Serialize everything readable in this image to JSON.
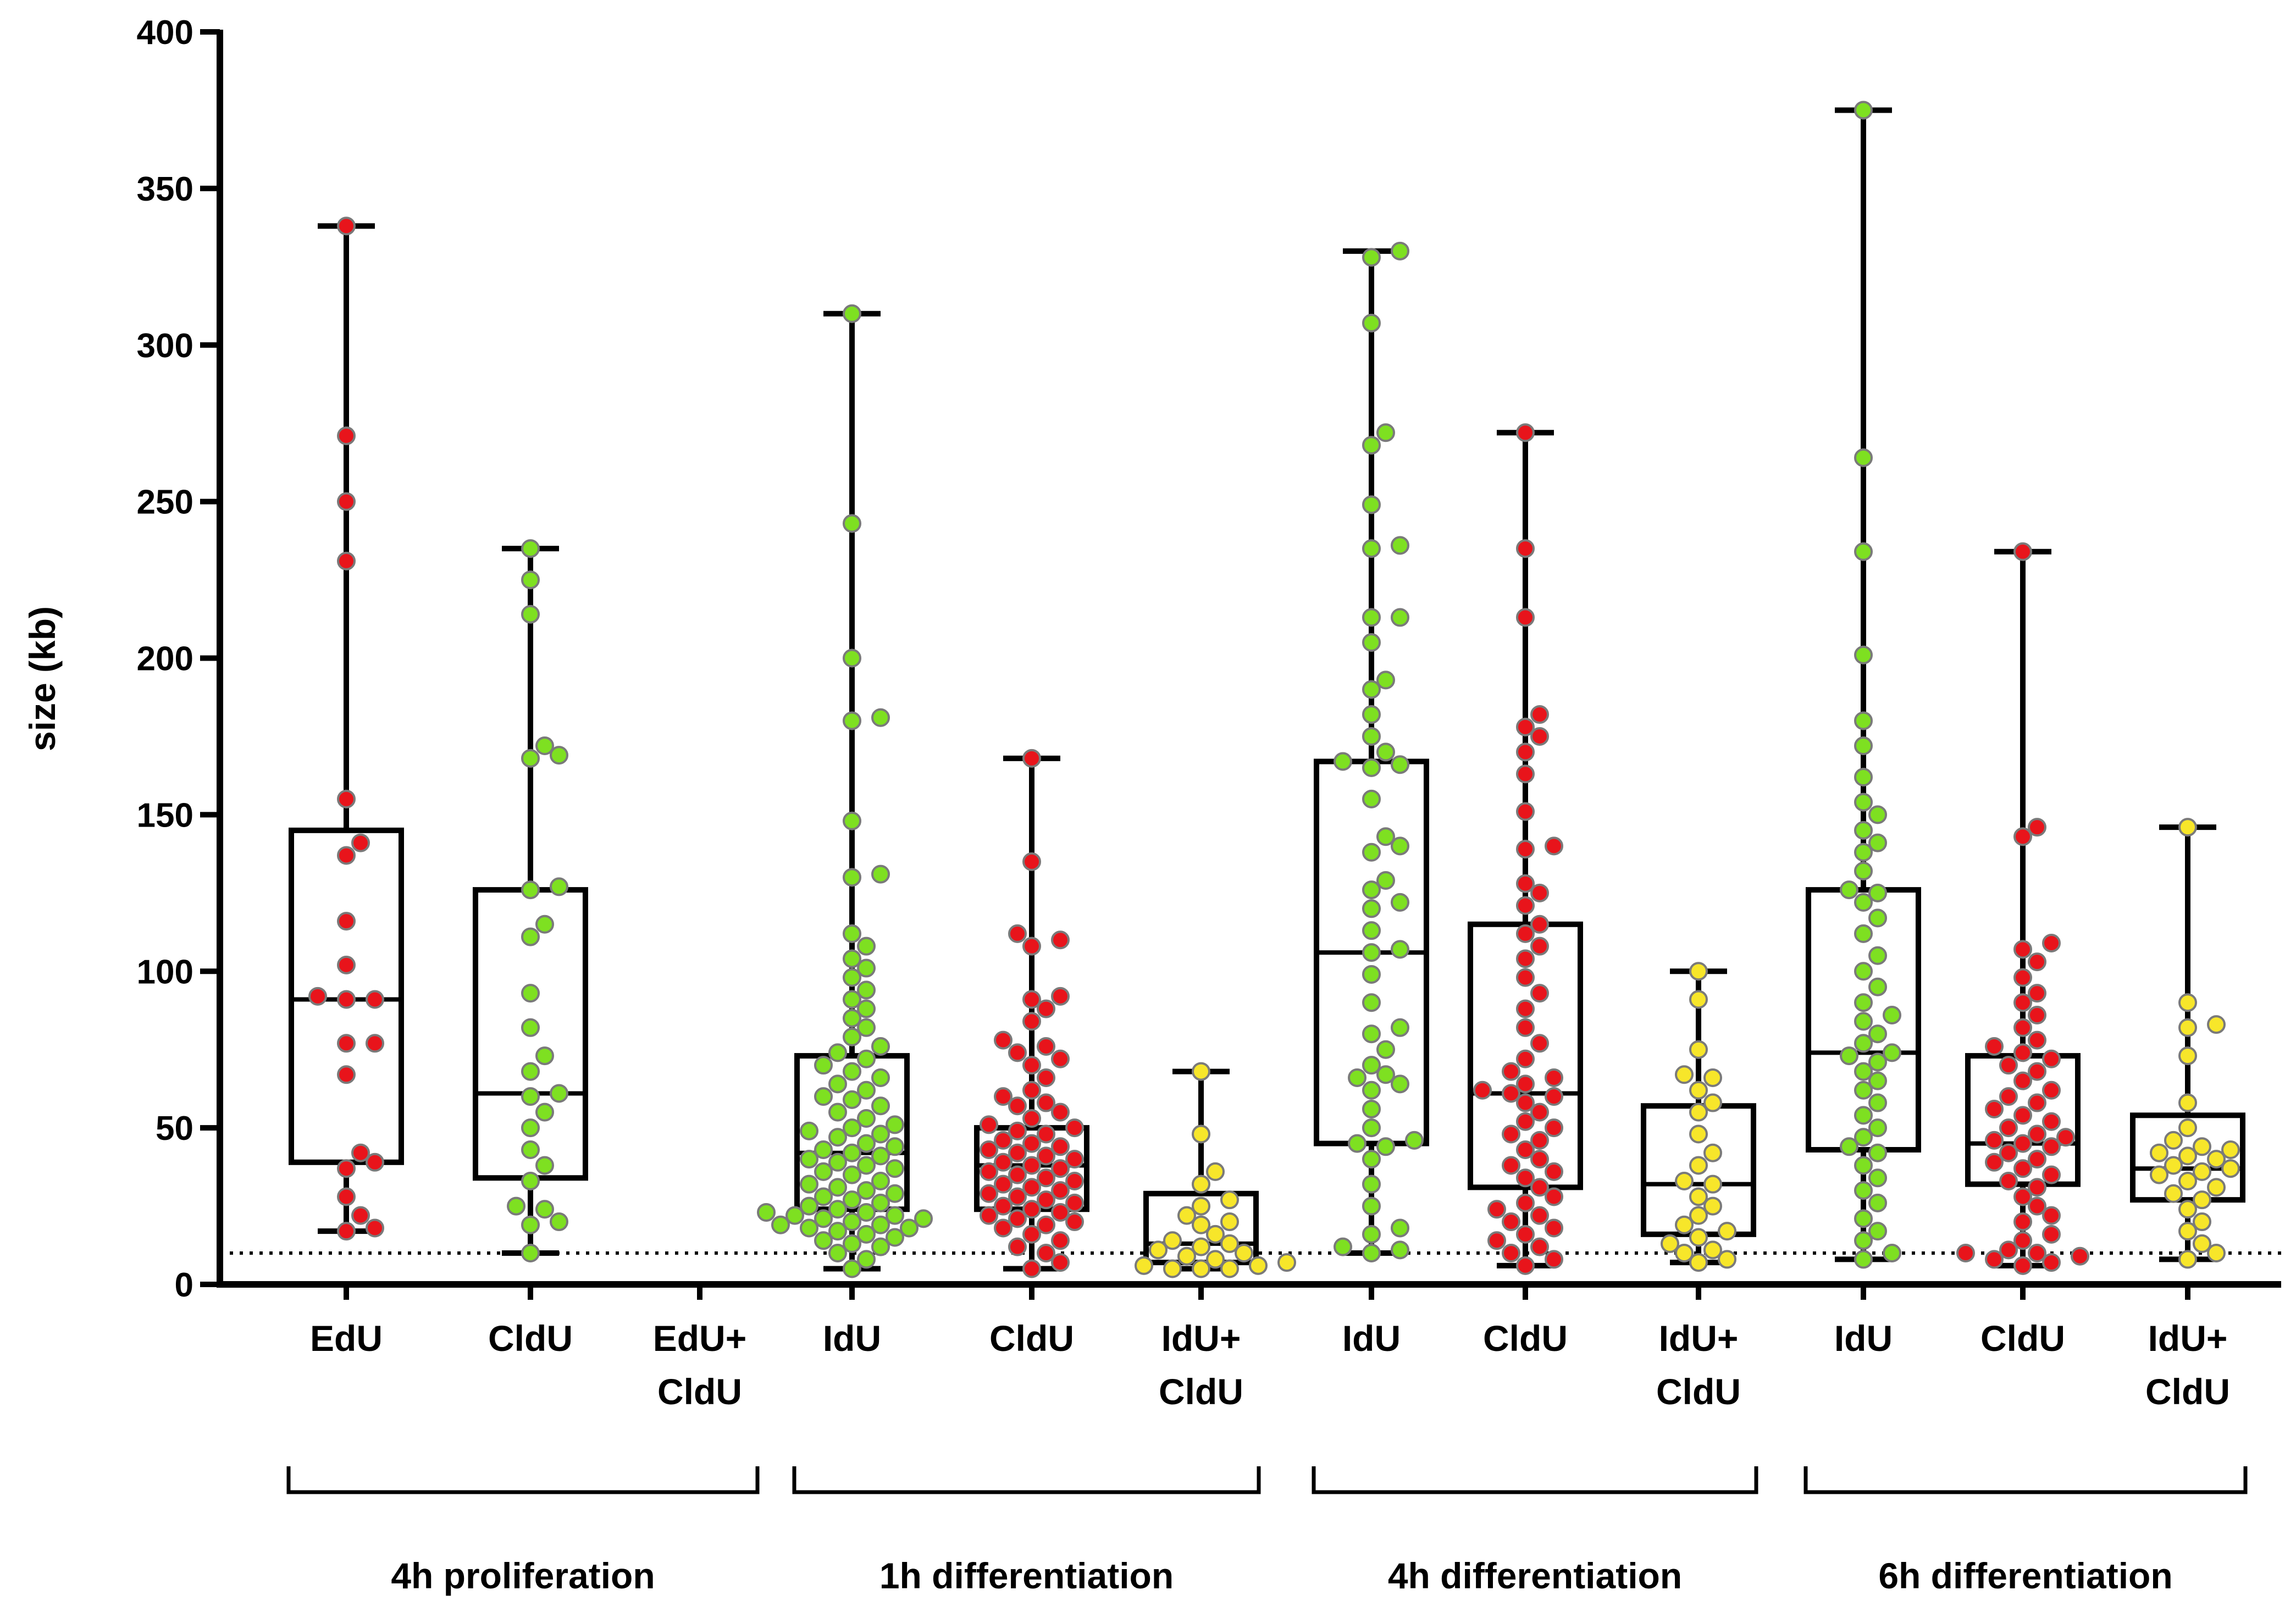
{
  "chart_data": {
    "type": "box",
    "title": "",
    "xlabel": "",
    "ylabel": "size (kb)",
    "ylim": [
      0,
      400
    ],
    "yticks": [
      0,
      50,
      100,
      150,
      200,
      250,
      300,
      350,
      400
    ],
    "reference_line": 10,
    "colors": {
      "red": "#e8141b",
      "green": "#7ee021",
      "yellow": "#f7e62a"
    },
    "groups": [
      {
        "label": "4h proliferation",
        "categories": [
          "EdU",
          "CldU",
          "EdU+\nCldU"
        ]
      },
      {
        "label": "1h differentiation",
        "categories": [
          "IdU",
          "CldU",
          "IdU+\nCldU"
        ]
      },
      {
        "label": "4h differentiation",
        "categories": [
          "IdU",
          "CldU",
          "IdU+\nCldU"
        ]
      },
      {
        "label": "6h differentiation",
        "categories": [
          "IdU",
          "CldU",
          "IdU+\nCldU"
        ]
      }
    ],
    "series": [
      {
        "name": "4h proliferation EdU",
        "color": "red",
        "min": 17,
        "q1": 39,
        "median": 91,
        "q3": 145,
        "max": 338,
        "points": [
          17,
          18,
          22,
          28,
          37,
          39,
          42,
          67,
          77,
          77,
          91,
          91,
          92,
          102,
          116,
          137,
          141,
          155,
          231,
          250,
          271,
          338
        ]
      },
      {
        "name": "4h proliferation CldU",
        "color": "green",
        "min": 10,
        "q1": 34,
        "median": 61,
        "q3": 126,
        "max": 235,
        "points": [
          10,
          19,
          20,
          24,
          25,
          33,
          38,
          43,
          50,
          55,
          60,
          61,
          68,
          73,
          82,
          93,
          111,
          115,
          126,
          127,
          168,
          169,
          172,
          214,
          225,
          235
        ]
      },
      {
        "name": "4h proliferation EdU+CldU",
        "color": "yellow",
        "empty": true,
        "points": []
      },
      {
        "name": "1h differentiation IdU",
        "color": "green",
        "min": 5,
        "q1": 24,
        "median": 42,
        "q3": 73,
        "max": 310,
        "points": [
          5,
          8,
          10,
          12,
          13,
          14,
          15,
          16,
          17,
          18,
          18,
          19,
          19,
          20,
          21,
          21,
          22,
          22,
          23,
          23,
          24,
          25,
          26,
          27,
          28,
          29,
          30,
          31,
          32,
          33,
          35,
          36,
          37,
          38,
          39,
          40,
          41,
          42,
          43,
          44,
          45,
          47,
          48,
          49,
          50,
          51,
          53,
          55,
          57,
          59,
          60,
          62,
          64,
          66,
          68,
          70,
          72,
          74,
          76,
          79,
          82,
          85,
          88,
          91,
          94,
          98,
          101,
          104,
          108,
          112,
          130,
          131,
          148,
          180,
          181,
          200,
          243,
          310
        ]
      },
      {
        "name": "1h differentiation CldU",
        "color": "red",
        "min": 5,
        "q1": 24,
        "median": 38,
        "q3": 50,
        "max": 168,
        "points": [
          5,
          7,
          10,
          12,
          14,
          16,
          18,
          19,
          20,
          21,
          22,
          23,
          24,
          25,
          26,
          27,
          28,
          29,
          30,
          31,
          32,
          33,
          34,
          35,
          36,
          37,
          38,
          39,
          40,
          41,
          42,
          43,
          44,
          45,
          46,
          48,
          49,
          50,
          51,
          53,
          55,
          57,
          58,
          60,
          62,
          66,
          70,
          72,
          74,
          76,
          78,
          84,
          88,
          91,
          92,
          108,
          110,
          112,
          135,
          168
        ]
      },
      {
        "name": "1h differentiation IdU+CldU",
        "color": "yellow",
        "min": 5,
        "q1": 7,
        "median": 13,
        "q3": 29,
        "max": 68,
        "points": [
          5,
          5,
          5,
          6,
          6,
          7,
          8,
          9,
          10,
          11,
          12,
          13,
          14,
          16,
          19,
          20,
          22,
          25,
          27,
          32,
          36,
          48,
          68
        ]
      },
      {
        "name": "4h differentiation IdU",
        "color": "green",
        "min": 10,
        "q1": 45,
        "median": 106,
        "q3": 167,
        "max": 330,
        "points": [
          10,
          11,
          12,
          16,
          18,
          25,
          32,
          40,
          44,
          45,
          46,
          50,
          56,
          62,
          64,
          66,
          67,
          70,
          75,
          80,
          82,
          90,
          99,
          106,
          107,
          113,
          120,
          122,
          126,
          129,
          138,
          140,
          143,
          155,
          165,
          166,
          167,
          170,
          175,
          182,
          190,
          193,
          205,
          213,
          213,
          235,
          236,
          249,
          268,
          272,
          307,
          328,
          330
        ]
      },
      {
        "name": "4h differentiation CldU",
        "color": "red",
        "min": 6,
        "q1": 31,
        "median": 61,
        "q3": 115,
        "max": 272,
        "points": [
          6,
          8,
          10,
          12,
          14,
          16,
          18,
          20,
          22,
          24,
          26,
          28,
          31,
          34,
          36,
          38,
          40,
          43,
          46,
          48,
          50,
          52,
          55,
          58,
          60,
          61,
          62,
          64,
          66,
          68,
          72,
          77,
          82,
          88,
          93,
          98,
          104,
          108,
          112,
          115,
          121,
          125,
          128,
          139,
          140,
          151,
          163,
          170,
          175,
          178,
          182,
          213,
          235,
          272
        ]
      },
      {
        "name": "4h differentiation IdU+CldU",
        "color": "yellow",
        "min": 7,
        "q1": 16,
        "median": 32,
        "q3": 57,
        "max": 100,
        "points": [
          7,
          8,
          10,
          11,
          13,
          15,
          17,
          19,
          22,
          25,
          28,
          32,
          33,
          38,
          42,
          48,
          55,
          58,
          62,
          66,
          67,
          75,
          91,
          100
        ]
      },
      {
        "name": "6h differentiation IdU",
        "color": "green",
        "min": 8,
        "q1": 43,
        "median": 74,
        "q3": 126,
        "max": 375,
        "points": [
          8,
          10,
          14,
          17,
          21,
          26,
          30,
          34,
          38,
          42,
          44,
          47,
          50,
          54,
          58,
          62,
          65,
          68,
          71,
          73,
          74,
          77,
          80,
          84,
          86,
          90,
          95,
          100,
          105,
          112,
          117,
          122,
          125,
          126,
          132,
          138,
          141,
          145,
          150,
          154,
          162,
          172,
          180,
          201,
          234,
          264,
          375
        ]
      },
      {
        "name": "6h differentiation CldU",
        "color": "red",
        "min": 6,
        "q1": 32,
        "median": 45,
        "q3": 73,
        "max": 234,
        "points": [
          6,
          7,
          8,
          9,
          10,
          10,
          11,
          14,
          16,
          20,
          22,
          25,
          28,
          31,
          33,
          35,
          37,
          39,
          40,
          42,
          44,
          45,
          46,
          47,
          48,
          50,
          52,
          54,
          56,
          58,
          60,
          62,
          65,
          68,
          70,
          72,
          74,
          76,
          78,
          82,
          86,
          90,
          93,
          98,
          103,
          107,
          109,
          143,
          146,
          234
        ]
      },
      {
        "name": "6h differentiation IdU+CldU",
        "color": "yellow",
        "min": 8,
        "q1": 27,
        "median": 37,
        "q3": 54,
        "max": 146,
        "points": [
          8,
          10,
          13,
          17,
          20,
          24,
          27,
          29,
          31,
          33,
          35,
          36,
          37,
          38,
          40,
          41,
          42,
          43,
          44,
          46,
          50,
          58,
          73,
          82,
          83,
          90,
          146
        ]
      }
    ]
  }
}
